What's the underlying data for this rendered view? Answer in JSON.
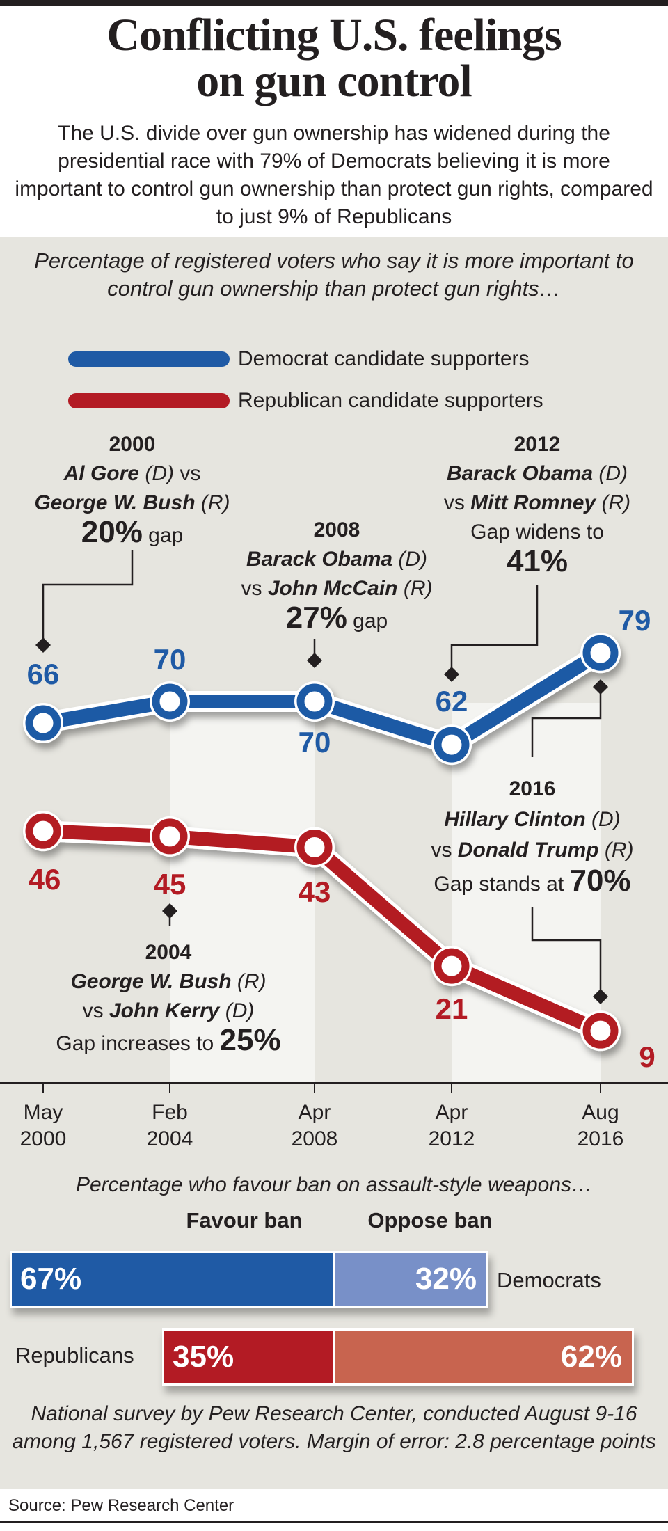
{
  "header": {
    "title_line1": "Conflicting U.S. feelings",
    "title_line2": "on gun control",
    "subtitle": "The U.S. divide over gun ownership has widened during the presidential race with 79% of Democrats believing it is more important to control gun ownership than protect gun rights, compared to just 9% of Republicans"
  },
  "colors": {
    "democrat": "#1f5aa5",
    "republican": "#b31b24",
    "democrat_light": "#7890c8",
    "republican_light": "#c8644f",
    "panel": "#e6e5df"
  },
  "chart_data": [
    {
      "type": "line",
      "title": "Percentage of registered voters who say it is more important to control gun ownership than protect gun rights…",
      "categories": [
        [
          "May",
          "2000"
        ],
        [
          "Feb",
          "2004"
        ],
        [
          "Apr",
          "2008"
        ],
        [
          "Apr",
          "2012"
        ],
        [
          "Aug",
          "2016"
        ]
      ],
      "series": [
        {
          "name": "Democrat candidate supporters",
          "values": [
            66,
            70,
            70,
            62,
            79
          ]
        },
        {
          "name": "Republican candidate supporters",
          "values": [
            46,
            45,
            43,
            21,
            9
          ]
        }
      ],
      "legend": "top-left",
      "annotations": {
        "a2000": {
          "year": "2000",
          "cand1": "Al Gore",
          "party1": "(D)",
          "vs": "vs",
          "cand2": "George W. Bush",
          "party2": "(R)",
          "pct": "20%",
          "suffix": "gap"
        },
        "a2004": {
          "year": "2004",
          "cand1": "George W. Bush",
          "party1": "(R)",
          "vs": "vs",
          "cand2": "John Kerry",
          "party2": "(D)",
          "prefix": "Gap increases to",
          "pct": "25%"
        },
        "a2008": {
          "year": "2008",
          "cand1": "Barack Obama",
          "party1": "(D)",
          "vs": "vs",
          "cand2": "John McCain",
          "party2": "(R)",
          "pct": "27%",
          "suffix": "gap"
        },
        "a2012": {
          "year": "2012",
          "cand1": "Barack Obama",
          "party1": "(D)",
          "vs": "vs",
          "cand2": "Mitt Romney",
          "party2": "(R)",
          "prefix": "Gap widens to",
          "pct": "41%"
        },
        "a2016": {
          "year": "2016",
          "cand1": "Hillary Clinton",
          "party1": "(D)",
          "vs": "vs",
          "cand2": "Donald Trump",
          "party2": "(R)",
          "prefix": "Gap stands at",
          "pct": "70%"
        }
      }
    },
    {
      "type": "bar",
      "title": "Percentage who favour ban on assault-style weapons…",
      "columns": [
        "Favour ban",
        "Oppose ban"
      ],
      "rows": [
        {
          "name": "Democrats",
          "favour": 67,
          "oppose": 32,
          "favour_label": "67%",
          "oppose_label": "32%"
        },
        {
          "name": "Republicans",
          "favour": 35,
          "oppose": 62,
          "favour_label": "35%",
          "oppose_label": "62%"
        }
      ]
    }
  ],
  "footnote": "National survey by Pew Research Center, conducted August 9-16 among 1,567 registered voters. Margin of error: 2.8 percentage points",
  "source": "Source: Pew Research Center"
}
